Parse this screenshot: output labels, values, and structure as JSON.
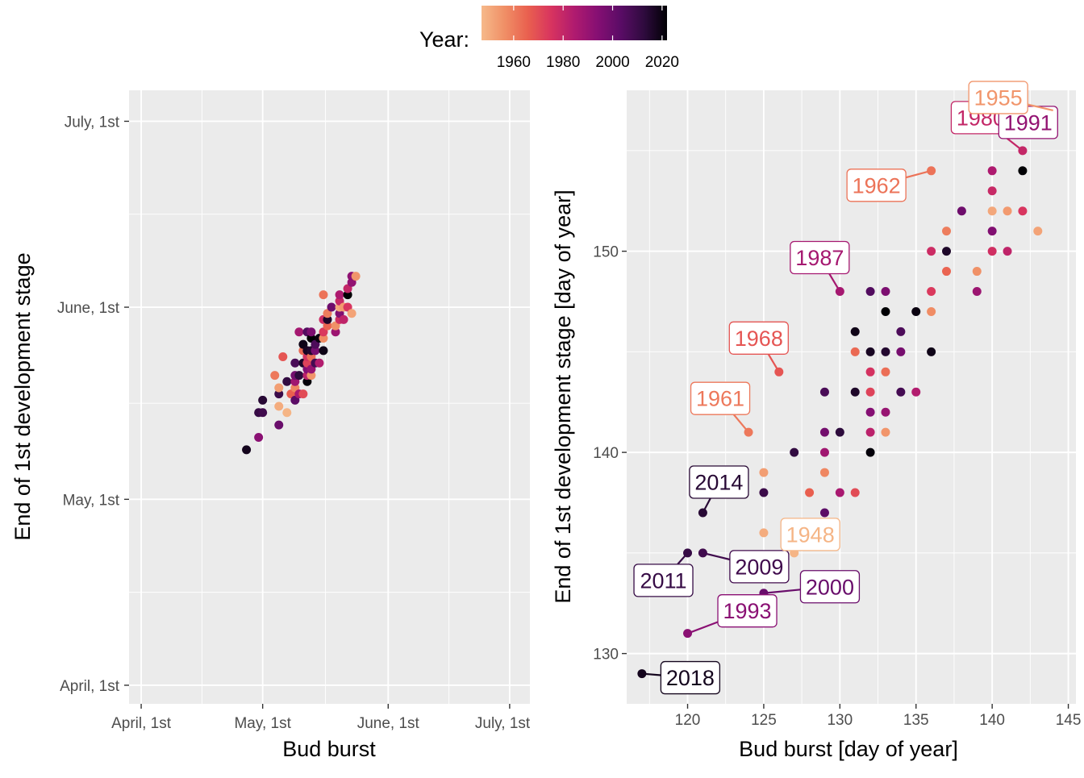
{
  "legend": {
    "title": "Year:",
    "ticks": [
      "1960",
      "1980",
      "2000",
      "2020"
    ],
    "colors": [
      "#F6B98A",
      "#F08F66",
      "#E9604F",
      "#D8345F",
      "#B01B6F",
      "#860F73",
      "#5A0C66",
      "#2F0B3E",
      "#000004"
    ]
  },
  "colors": {
    "panel_bg": "#EBEBEB",
    "grid": "#FFFFFF",
    "tick": "#333333"
  },
  "chart_data": [
    {
      "type": "scatter",
      "xlabel": "Bud burst",
      "ylabel": "End of 1st development stage",
      "x_axis_type": "date",
      "y_axis_type": "date",
      "xlim": [
        "March 29",
        "July 6"
      ],
      "ylim": [
        "March 29",
        "July 6"
      ],
      "x_ticks": [
        "April, 1st",
        "May, 1st",
        "June, 1st",
        "July, 1st"
      ],
      "y_ticks": [
        "April, 1st",
        "May, 1st",
        "June, 1st",
        "July, 1st"
      ],
      "tick_dates": [
        "April 1",
        "May 1",
        "June 1",
        "July 1"
      ],
      "grid": true,
      "note": "same observations as the right panel, plotted as calendar dates"
    },
    {
      "type": "scatter",
      "xlabel": "Bud burst [day of year]",
      "ylabel": "End of 1st development stage [day of year]",
      "xlim": [
        116,
        145.5
      ],
      "ylim": [
        127.5,
        158
      ],
      "x_ticks": [
        "120",
        "125",
        "130",
        "135",
        "140",
        "145"
      ],
      "y_ticks": [
        "130",
        "140",
        "150"
      ],
      "grid": true,
      "color_by": "year",
      "points": [
        {
          "x": 117,
          "y": 129,
          "year": 2018
        },
        {
          "x": 120,
          "y": 131,
          "year": 1993
        },
        {
          "x": 120,
          "y": 135,
          "year": 2011
        },
        {
          "x": 121,
          "y": 135,
          "year": 2009
        },
        {
          "x": 121,
          "y": 137,
          "year": 2014
        },
        {
          "x": 124,
          "y": 141,
          "year": 1961
        },
        {
          "x": 125,
          "y": 133,
          "year": 2000
        },
        {
          "x": 125,
          "y": 136,
          "year": 1950
        },
        {
          "x": 125,
          "y": 138,
          "year": 2010
        },
        {
          "x": 125,
          "y": 139,
          "year": 1953
        },
        {
          "x": 126,
          "y": 144,
          "year": 1968
        },
        {
          "x": 127,
          "y": 135,
          "year": 1948
        },
        {
          "x": 127,
          "y": 140,
          "year": 2012
        },
        {
          "x": 128,
          "y": 138,
          "year": 1966
        },
        {
          "x": 129,
          "y": 137,
          "year": 2003
        },
        {
          "x": 129,
          "y": 139,
          "year": 1958
        },
        {
          "x": 129,
          "y": 140,
          "year": 1988
        },
        {
          "x": 129,
          "y": 141,
          "year": 1998
        },
        {
          "x": 129,
          "y": 143,
          "year": 2007
        },
        {
          "x": 130,
          "y": 138,
          "year": 1986
        },
        {
          "x": 130,
          "y": 141,
          "year": 2013
        },
        {
          "x": 130,
          "y": 148,
          "year": 1987
        },
        {
          "x": 131,
          "y": 138,
          "year": 1970
        },
        {
          "x": 131,
          "y": 143,
          "year": 2016
        },
        {
          "x": 131,
          "y": 145,
          "year": 1964
        },
        {
          "x": 131,
          "y": 146,
          "year": 2019
        },
        {
          "x": 132,
          "y": 140,
          "year": 2021
        },
        {
          "x": 132,
          "y": 141,
          "year": 1982
        },
        {
          "x": 132,
          "y": 142,
          "year": 1994
        },
        {
          "x": 132,
          "y": 143,
          "year": 1972
        },
        {
          "x": 132,
          "y": 144,
          "year": 1976
        },
        {
          "x": 132,
          "y": 145,
          "year": 2017
        },
        {
          "x": 132,
          "y": 148,
          "year": 2005
        },
        {
          "x": 133,
          "y": 141,
          "year": 1955
        },
        {
          "x": 133,
          "y": 142,
          "year": 1990
        },
        {
          "x": 133,
          "y": 144,
          "year": 1963
        },
        {
          "x": 133,
          "y": 145,
          "year": 2015
        },
        {
          "x": 133,
          "y": 147,
          "year": 2022
        },
        {
          "x": 133,
          "y": 148,
          "year": 1996
        },
        {
          "x": 134,
          "y": 143,
          "year": 2008
        },
        {
          "x": 134,
          "y": 145,
          "year": 1997
        },
        {
          "x": 134,
          "y": 146,
          "year": 2006
        },
        {
          "x": 135,
          "y": 143,
          "year": 1984
        },
        {
          "x": 135,
          "y": 147,
          "year": 2020
        },
        {
          "x": 136,
          "y": 145,
          "year": 2019
        },
        {
          "x": 136,
          "y": 147,
          "year": 1957
        },
        {
          "x": 136,
          "y": 148,
          "year": 1974
        },
        {
          "x": 136,
          "y": 150,
          "year": 1978
        },
        {
          "x": 136,
          "y": 154,
          "year": 1962
        },
        {
          "x": 137,
          "y": 149,
          "year": 1965
        },
        {
          "x": 137,
          "y": 150,
          "year": 2016
        },
        {
          "x": 137,
          "y": 151,
          "year": 1960
        },
        {
          "x": 138,
          "y": 152,
          "year": 1999
        },
        {
          "x": 139,
          "y": 148,
          "year": 1989
        },
        {
          "x": 139,
          "y": 149,
          "year": 1956
        },
        {
          "x": 140,
          "y": 150,
          "year": 1977
        },
        {
          "x": 140,
          "y": 151,
          "year": 1995
        },
        {
          "x": 140,
          "y": 152,
          "year": 1951
        },
        {
          "x": 140,
          "y": 153,
          "year": 1979
        },
        {
          "x": 140,
          "y": 154,
          "year": 1985
        },
        {
          "x": 141,
          "y": 150,
          "year": 1981
        },
        {
          "x": 141,
          "y": 152,
          "year": 1954
        },
        {
          "x": 142,
          "y": 152,
          "year": 1975
        },
        {
          "x": 142,
          "y": 154,
          "year": 2022
        },
        {
          "x": 142,
          "y": 155,
          "year": 1980
        },
        {
          "x": 143,
          "y": 151,
          "year": 1952
        },
        {
          "x": 143,
          "y": 156,
          "year": 1991
        },
        {
          "x": 143,
          "y": 157,
          "year": 1992
        },
        {
          "x": 144,
          "y": 157,
          "year": 1955
        }
      ],
      "annotations": [
        {
          "label": "2018",
          "x": 117,
          "y": 129,
          "year": 2018
        },
        {
          "label": "1993",
          "x": 120,
          "y": 131,
          "year": 1993
        },
        {
          "label": "2011",
          "x": 120,
          "y": 135,
          "year": 2011
        },
        {
          "label": "2009",
          "x": 121,
          "y": 135,
          "year": 2009
        },
        {
          "label": "2014",
          "x": 121,
          "y": 137,
          "year": 2014
        },
        {
          "label": "1961",
          "x": 124,
          "y": 141,
          "year": 1961
        },
        {
          "label": "2000",
          "x": 125,
          "y": 133,
          "year": 2000
        },
        {
          "label": "1968",
          "x": 126,
          "y": 144,
          "year": 1968
        },
        {
          "label": "1948",
          "x": 127,
          "y": 135,
          "year": 1948
        },
        {
          "label": "1987",
          "x": 130,
          "y": 148,
          "year": 1987
        },
        {
          "label": "1962",
          "x": 136,
          "y": 154,
          "year": 1962
        },
        {
          "label": "1980",
          "x": 142,
          "y": 155,
          "year": 1980
        },
        {
          "label": "1991",
          "x": 143,
          "y": 156,
          "year": 1991
        },
        {
          "label": "1955",
          "x": 144,
          "y": 157,
          "year": 1955
        }
      ]
    }
  ]
}
